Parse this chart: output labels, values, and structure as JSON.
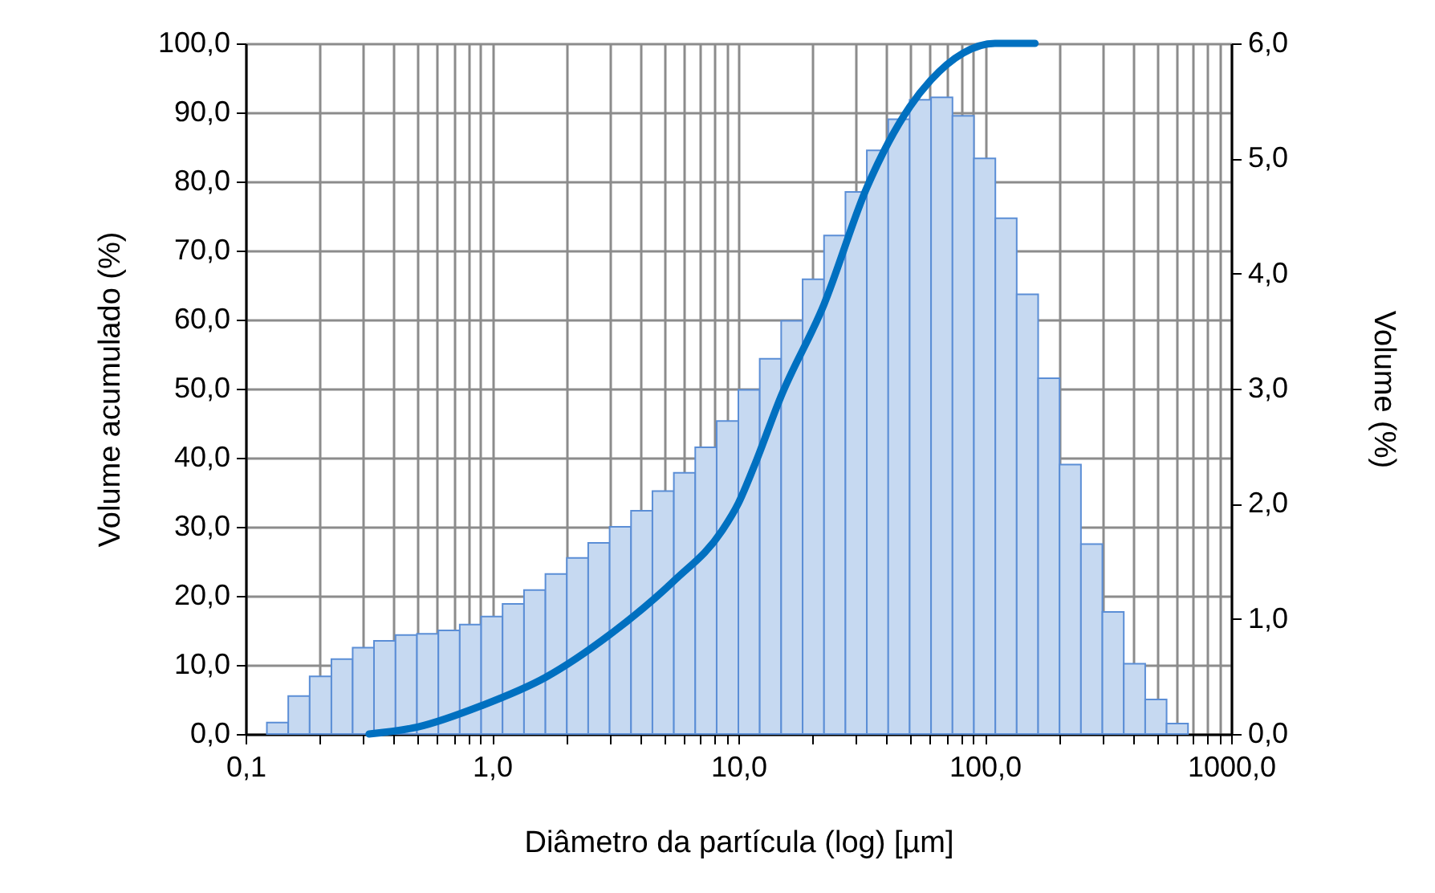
{
  "chart_data": {
    "type": "histogram",
    "xlabel": "Diâmetro da partícula (log) [µm]",
    "ylabel": "Volume acumulado (%)",
    "y2label": "Volume (%)",
    "bins": [
      0.122,
      0.149,
      0.182,
      0.223,
      0.272,
      0.332,
      0.406,
      0.496,
      0.606,
      0.74,
      0.904,
      1.104,
      1.349,
      1.648,
      2.013,
      2.458,
      3.003,
      3.668,
      4.48,
      5.472,
      6.684,
      8.165,
      10.0,
      12.21,
      14.92,
      18.23,
      22.27,
      27.2,
      33.22,
      40.58,
      49.57,
      60.55,
      73.96,
      90.35,
      110.4,
      134.8,
      164.7,
      201.2,
      245.7,
      300.2,
      366.6,
      447.9,
      547.0,
      668.3
    ],
    "series": [
      {
        "axis": "y2",
        "color": "#c6d9f1",
        "values": [
          0.1,
          0.33,
          0.5,
          0.65,
          0.75,
          0.81,
          0.86,
          0.87,
          0.9,
          0.95,
          1.02,
          1.13,
          1.25,
          1.39,
          1.53,
          1.66,
          1.8,
          1.94,
          2.11,
          2.27,
          2.49,
          2.72,
          2.99,
          3.26,
          3.59,
          3.95,
          4.33,
          4.71,
          5.07,
          5.34,
          5.51,
          5.53,
          5.37,
          5.0,
          4.48,
          3.82,
          3.09,
          2.34,
          1.65,
          1.06,
          0.61,
          0.3,
          0.09
        ]
      },
      {
        "type": "line",
        "axis": "y",
        "color": "#0070c0",
        "x": [
          0.317,
          0.498,
          0.907,
          1.65,
          3.01,
          5.49,
          8.61,
          10.0,
          11.6,
          14.9,
          22.2,
          33.2,
          49.6,
          60.5,
          81.7,
          110,
          160
        ],
        "values": [
          0,
          1.0,
          4.1,
          8.2,
          14.4,
          22.2,
          29.5,
          33.4,
          38.8,
          48.9,
          62.1,
          79.1,
          90.8,
          94.7,
          98.6,
          100,
          100
        ]
      }
    ],
    "xlim": [
      0.1,
      1000
    ],
    "xticks": [
      {
        "value": 0.1,
        "label": "0,1"
      },
      {
        "value": 0.2,
        "label": null
      },
      {
        "value": 0.3,
        "label": null
      },
      {
        "value": 0.4,
        "label": null
      },
      {
        "value": 0.5,
        "label": null
      },
      {
        "value": 0.6,
        "label": null
      },
      {
        "value": 0.7,
        "label": null
      },
      {
        "value": 0.8,
        "label": null
      },
      {
        "value": 0.9,
        "label": null
      },
      {
        "value": 1,
        "label": "1,0"
      },
      {
        "value": 2,
        "label": null
      },
      {
        "value": 3,
        "label": null
      },
      {
        "value": 4,
        "label": null
      },
      {
        "value": 5,
        "label": null
      },
      {
        "value": 6,
        "label": null
      },
      {
        "value": 7,
        "label": null
      },
      {
        "value": 8,
        "label": null
      },
      {
        "value": 9,
        "label": null
      },
      {
        "value": 10,
        "label": "10,0"
      },
      {
        "value": 20,
        "label": null
      },
      {
        "value": 30,
        "label": null
      },
      {
        "value": 40,
        "label": null
      },
      {
        "value": 50,
        "label": null
      },
      {
        "value": 60,
        "label": null
      },
      {
        "value": 70,
        "label": null
      },
      {
        "value": 80,
        "label": null
      },
      {
        "value": 90,
        "label": null
      },
      {
        "value": 100,
        "label": "100,0"
      },
      {
        "value": 200,
        "label": null
      },
      {
        "value": 300,
        "label": null
      },
      {
        "value": 400,
        "label": null
      },
      {
        "value": 500,
        "label": null
      },
      {
        "value": 600,
        "label": null
      },
      {
        "value": 700,
        "label": null
      },
      {
        "value": 800,
        "label": null
      },
      {
        "value": 900,
        "label": null
      },
      {
        "value": 1000,
        "label": "1000,0"
      }
    ],
    "ylim": [
      0,
      100
    ],
    "yticks": [
      {
        "value": 0,
        "label": "0,0"
      },
      {
        "value": 10,
        "label": "10,0"
      },
      {
        "value": 20,
        "label": "20,0"
      },
      {
        "value": 30,
        "label": "30,0"
      },
      {
        "value": 40,
        "label": "40,0"
      },
      {
        "value": 50,
        "label": "50,0"
      },
      {
        "value": 60,
        "label": "60,0"
      },
      {
        "value": 70,
        "label": "70,0"
      },
      {
        "value": 80,
        "label": "80,0"
      },
      {
        "value": 90,
        "label": "90,0"
      },
      {
        "value": 100,
        "label": "100,0"
      }
    ],
    "y2lim": [
      0,
      6
    ],
    "y2ticks": [
      {
        "value": 0,
        "label": "0,0"
      },
      {
        "value": 1,
        "label": "1,0"
      },
      {
        "value": 2,
        "label": "2,0"
      },
      {
        "value": 3,
        "label": "3,0"
      },
      {
        "value": 4,
        "label": "4,0"
      },
      {
        "value": 5,
        "label": "5,0"
      },
      {
        "value": 6,
        "label": "6,0"
      }
    ],
    "log": "x",
    "grid": true,
    "line_style": "solid",
    "marker": "none"
  }
}
